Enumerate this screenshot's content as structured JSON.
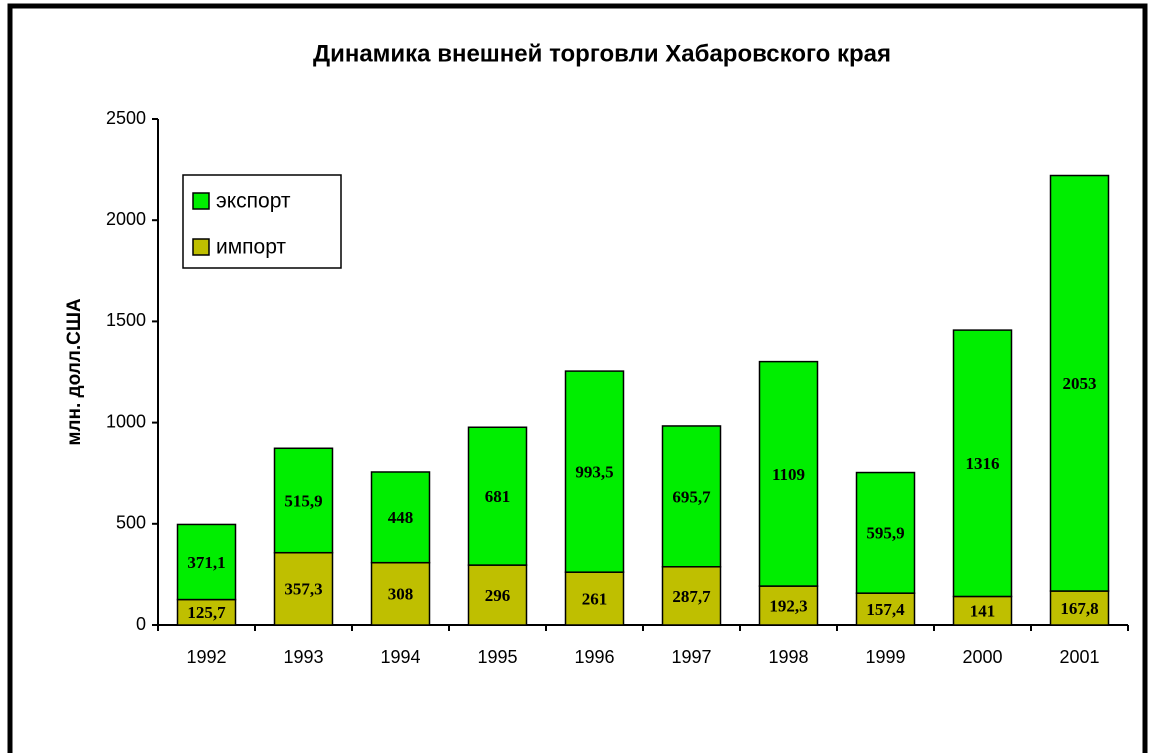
{
  "chart_data": {
    "type": "stacked_bar",
    "title": "Динамика внешней торговли Хабаровского края",
    "y_label": "млн. долл.США",
    "categories": [
      "1992",
      "1993",
      "1994",
      "1995",
      "1996",
      "1997",
      "1998",
      "1999",
      "2000",
      "2001"
    ],
    "series": [
      {
        "name": "импорт",
        "color": "#bfbf00",
        "values": [
          125.7,
          357.3,
          308,
          296,
          261,
          287.7,
          192.3,
          157.4,
          141,
          167.8
        ],
        "value_labels": [
          "125,7",
          "357,3",
          "308",
          "296",
          "261",
          "287,7",
          "192,3",
          "157,4",
          "141",
          "167,8"
        ]
      },
      {
        "name": "экспорт",
        "color": "#00ee00",
        "values": [
          371.1,
          515.9,
          448,
          681,
          993.5,
          695.7,
          1109,
          595.9,
          1316,
          2053
        ],
        "value_labels": [
          "371,1",
          "515,9",
          "448",
          "681",
          "993,5",
          "695,7",
          "1109",
          "595,9",
          "1316",
          "2053"
        ]
      }
    ],
    "legend_order": [
      1,
      0
    ],
    "ylim": [
      0,
      2500
    ],
    "yticks": [
      0,
      500,
      1000,
      1500,
      2000,
      2500
    ],
    "grid": false
  }
}
